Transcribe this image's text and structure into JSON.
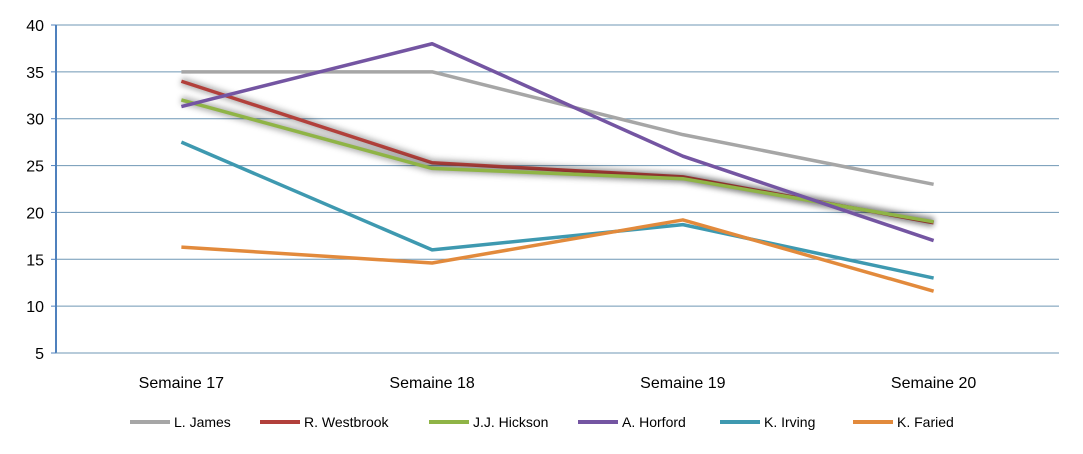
{
  "chart_data": {
    "type": "line",
    "categories": [
      "Semaine 17",
      "Semaine 18",
      "Semaine 19",
      "Semaine 20"
    ],
    "ylim": [
      5,
      40
    ],
    "yticks": [
      5,
      10,
      15,
      20,
      25,
      30,
      35,
      40
    ],
    "grid": "horizontal",
    "legend": "bottom",
    "series": [
      {
        "name": "L. James",
        "color": "#a6a6a6",
        "values": [
          35,
          35,
          28.3,
          23
        ],
        "glow": false
      },
      {
        "name": "R. Westbrook",
        "color": "#b2403b",
        "values": [
          34,
          25.3,
          23.8,
          18.9
        ],
        "glow": true
      },
      {
        "name": "J.J. Hickson",
        "color": "#8fb446",
        "values": [
          32,
          24.7,
          23.6,
          19
        ],
        "glow": true
      },
      {
        "name": "A. Horford",
        "color": "#7455a2",
        "values": [
          31.3,
          38,
          26,
          17
        ],
        "glow": false
      },
      {
        "name": "K. Irving",
        "color": "#3e99b0",
        "values": [
          27.5,
          16,
          18.7,
          13
        ],
        "glow": false
      },
      {
        "name": "K. Faried",
        "color": "#e28a3c",
        "values": [
          16.3,
          14.6,
          19.2,
          11.6
        ],
        "glow": false
      }
    ]
  }
}
